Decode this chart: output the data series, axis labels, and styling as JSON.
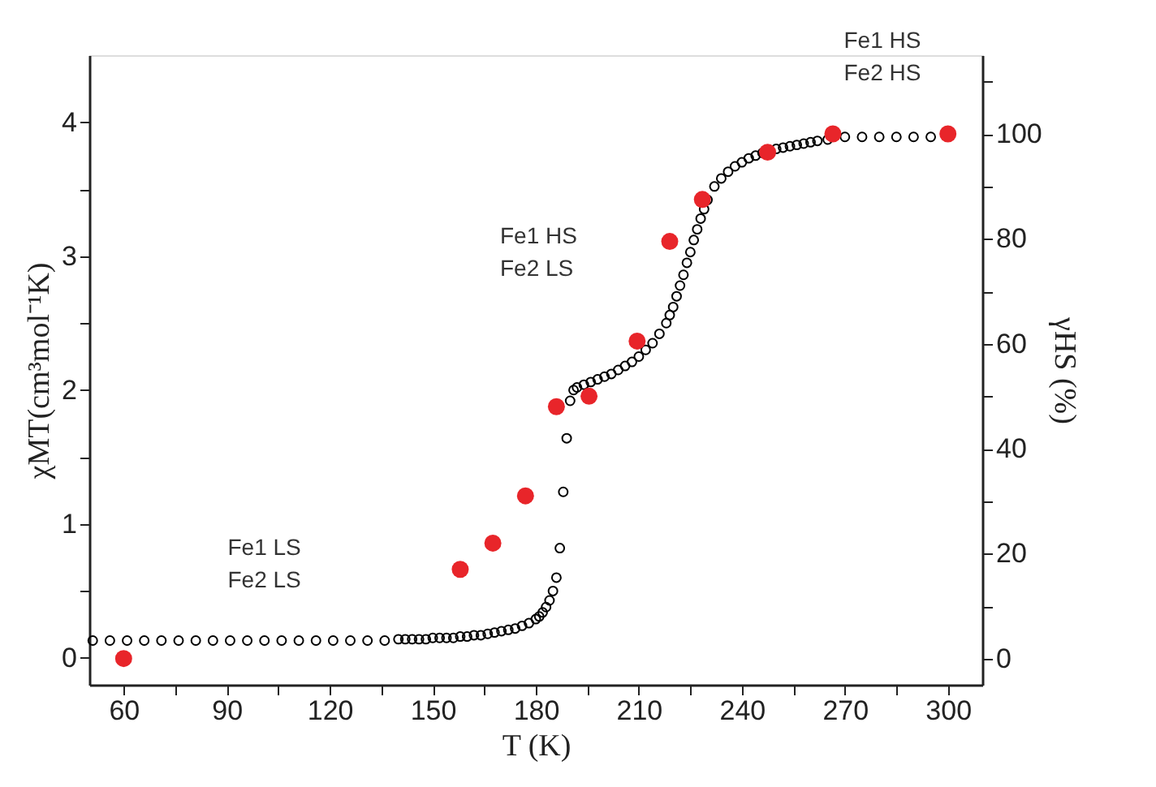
{
  "chart_data": {
    "type": "scatter",
    "xlabel": "T (K)",
    "ylabel": "χMT(cm³mol⁻¹K)",
    "y2label": "γHS (%)",
    "xlim": [
      50,
      310
    ],
    "ylim": [
      -0.2,
      4.5
    ],
    "y2lim": [
      -5,
      115
    ],
    "xticks": [
      60,
      {
        "value": 75,
        "label": null
      },
      90,
      {
        "value": 105,
        "label": null
      },
      120,
      {
        "value": 135,
        "label": null
      },
      150,
      {
        "value": 165,
        "label": null
      },
      180,
      {
        "value": 195,
        "label": null
      },
      210,
      {
        "value": 225,
        "label": null
      },
      240,
      {
        "value": 255,
        "label": null
      },
      270,
      {
        "value": 285,
        "label": null
      },
      300
    ],
    "yticks": [
      0,
      {
        "value": 0.5,
        "label": null
      },
      1,
      {
        "value": 1.5,
        "label": null
      },
      2,
      {
        "value": 2.5,
        "label": null
      },
      3,
      {
        "value": 3.5,
        "label": null
      },
      4
    ],
    "y2ticks": [
      0,
      {
        "value": 10,
        "label": null
      },
      20,
      {
        "value": 30,
        "label": null
      },
      40,
      {
        "value": 50,
        "label": null
      },
      60,
      {
        "value": 70,
        "label": null
      },
      80,
      {
        "value": 90,
        "label": null
      },
      100,
      {
        "value": 110,
        "label": null
      }
    ],
    "marker": "circle",
    "grid": false,
    "annotations": [
      "Fe1 LS\nFe2 LS",
      "Fe1 HS\nFe2 LS",
      "Fe1 HS\nFe2 HS"
    ],
    "series": [
      {
        "color": "#000000",
        "axis": "y",
        "x": [
          51,
          56,
          61,
          66,
          71,
          76,
          81,
          86,
          91,
          96,
          101,
          106,
          111,
          116,
          121,
          126,
          131,
          136,
          140,
          142,
          144,
          146,
          148,
          150,
          152,
          154,
          156,
          158,
          160,
          162,
          164,
          166,
          168,
          170,
          172,
          174,
          176,
          178,
          180,
          181,
          182,
          183,
          184,
          185,
          186,
          187,
          188,
          189,
          190,
          191,
          192,
          194,
          196,
          198,
          200,
          202,
          204,
          206,
          208,
          210,
          212,
          214,
          216,
          218,
          219,
          220,
          221,
          222,
          223,
          224,
          225,
          226,
          227,
          228,
          229,
          230,
          232,
          234,
          236,
          238,
          240,
          242,
          244,
          246,
          248,
          250,
          252,
          254,
          256,
          258,
          260,
          262,
          265,
          270,
          275,
          280,
          285,
          290,
          295
        ],
        "values": [
          0.13,
          0.13,
          0.13,
          0.13,
          0.13,
          0.13,
          0.13,
          0.13,
          0.13,
          0.13,
          0.13,
          0.13,
          0.13,
          0.13,
          0.13,
          0.13,
          0.13,
          0.13,
          0.14,
          0.14,
          0.14,
          0.14,
          0.14,
          0.15,
          0.15,
          0.15,
          0.15,
          0.16,
          0.16,
          0.17,
          0.17,
          0.18,
          0.19,
          0.2,
          0.21,
          0.22,
          0.24,
          0.26,
          0.29,
          0.31,
          0.34,
          0.38,
          0.43,
          0.5,
          0.6,
          0.82,
          1.24,
          1.64,
          1.92,
          2.0,
          2.02,
          2.04,
          2.06,
          2.08,
          2.1,
          2.12,
          2.15,
          2.18,
          2.21,
          2.25,
          2.3,
          2.35,
          2.42,
          2.5,
          2.56,
          2.62,
          2.7,
          2.78,
          2.86,
          2.95,
          3.03,
          3.12,
          3.2,
          3.28,
          3.35,
          3.42,
          3.52,
          3.58,
          3.63,
          3.67,
          3.7,
          3.73,
          3.75,
          3.77,
          null,
          3.8,
          3.81,
          3.82,
          3.83,
          3.84,
          3.85,
          3.86,
          3.87,
          3.89,
          3.89,
          3.89,
          3.89,
          3.89,
          3.89
        ]
      },
      {
        "color": "#e8252a",
        "axis": "y2",
        "x": [
          60,
          158,
          167.5,
          177,
          186,
          195.5,
          209.5,
          219,
          228.5,
          247.5,
          266.5,
          300
        ],
        "values": [
          0,
          17,
          22,
          31,
          48,
          50,
          60.5,
          79.5,
          87.5,
          96.5,
          100,
          100
        ]
      }
    ]
  }
}
